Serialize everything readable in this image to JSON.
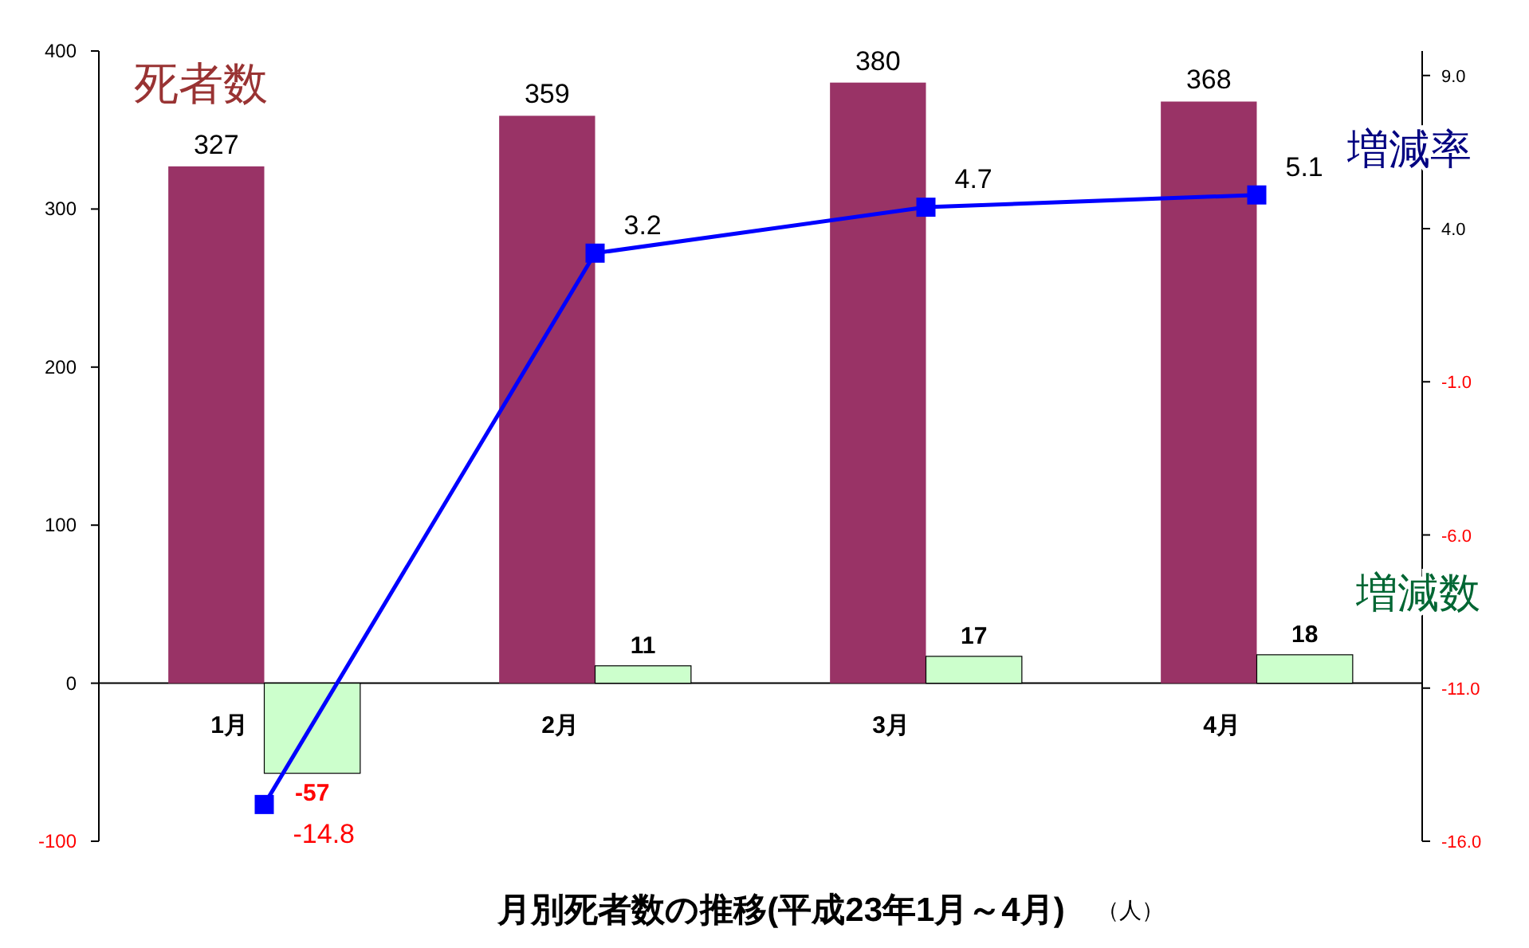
{
  "chart_data": {
    "type": "bar",
    "title": "月別死者数の推移(平成23年1月～4月)",
    "annotations": [
      "（人）"
    ],
    "categories": [
      "1月",
      "2月",
      "3月",
      "4月"
    ],
    "series": [
      {
        "name": "死者数",
        "color": "#993366",
        "values": [
          327,
          359,
          380,
          368
        ]
      },
      {
        "name": "増減数",
        "color": "#ccffcc",
        "values": [
          -57,
          11,
          17,
          18
        ]
      },
      {
        "name": "増減率",
        "type": "line",
        "axis": "y2",
        "color": "#0000ff",
        "values": [
          -14.8,
          3.2,
          4.7,
          5.1
        ]
      }
    ],
    "ylim": [
      -100,
      400
    ],
    "yticks": [
      -100,
      0,
      100,
      200,
      300,
      400
    ],
    "y2lim": [
      -16,
      9.8
    ],
    "y2ticks": [
      {
        "value": -16,
        "label": "-16.0"
      },
      {
        "value": -11,
        "label": "-11.0"
      },
      {
        "value": -6,
        "label": "-6.0"
      },
      {
        "value": -1,
        "label": "-1.0"
      },
      {
        "value": 4,
        "label": "4.0"
      },
      {
        "value": 9,
        "label": "9.0"
      }
    ],
    "data_labels": true,
    "marker": "square",
    "grid": false
  }
}
